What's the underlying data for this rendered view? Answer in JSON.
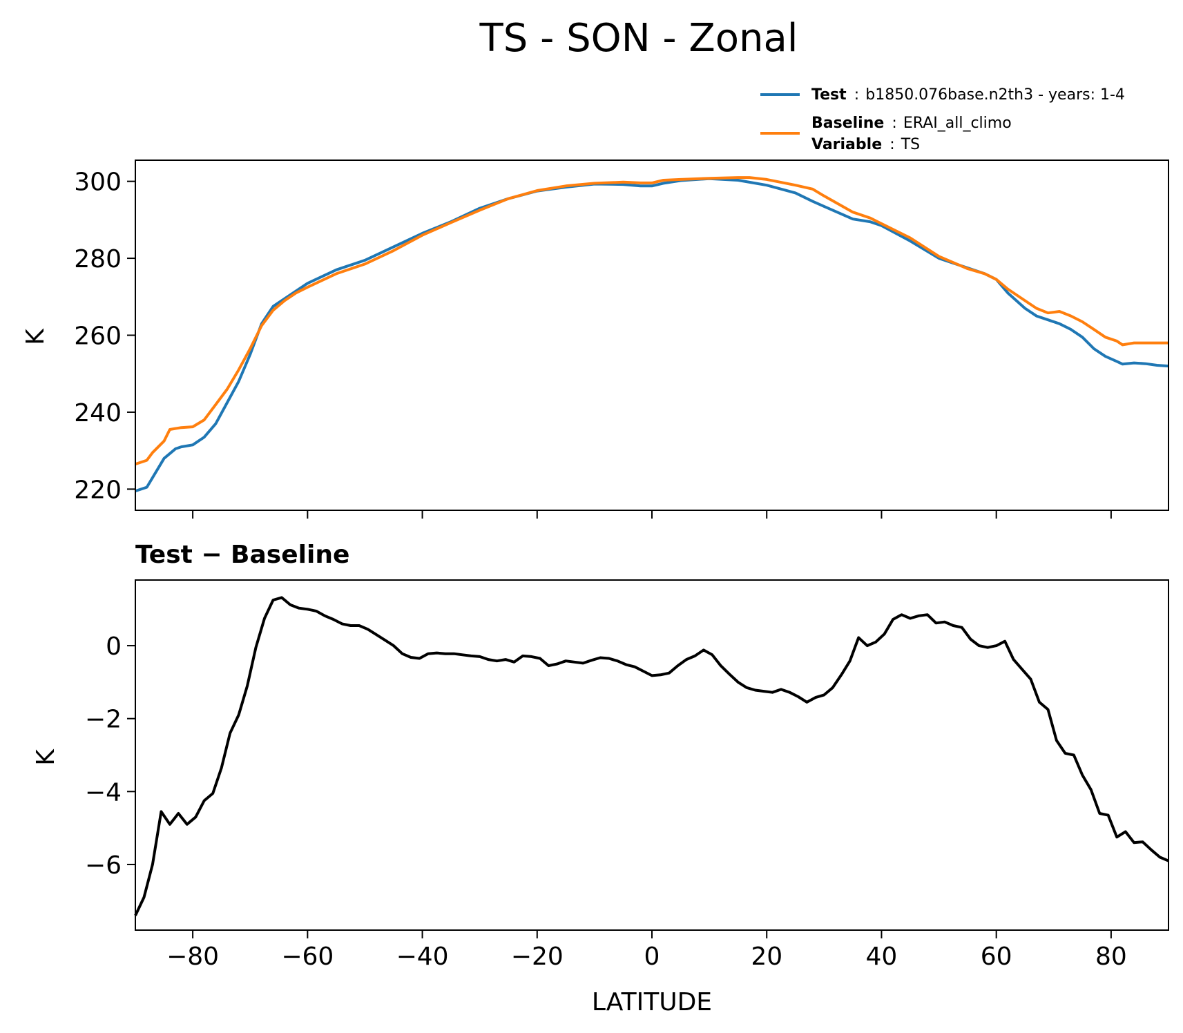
{
  "colors": {
    "test": "#1f77b4",
    "baseline": "#ff7f0e",
    "diff": "#000000"
  },
  "chart_data": [
    {
      "id": "top",
      "type": "line",
      "title": "TS - SON - Zonal",
      "xlabel": "",
      "ylabel": "K",
      "xlim": [
        -90,
        90
      ],
      "ylim": [
        214.5,
        305.5
      ],
      "xticks": [
        -80,
        -60,
        -40,
        -20,
        0,
        20,
        40,
        60,
        80
      ],
      "yticks": [
        220,
        240,
        260,
        280,
        300
      ],
      "ytick_labels": [
        "220",
        "240",
        "260",
        "280",
        "300"
      ],
      "legend": {
        "position": "top-right",
        "entries": [
          {
            "series": "test",
            "key": "Test",
            "sep": ":",
            "value": "b1850.076base.n2th3 - years: 1-4"
          },
          {
            "series": "baseline",
            "key": "Baseline",
            "sep": ":",
            "value": "ERAI_all_climo"
          },
          {
            "series": "baseline-extra",
            "key": "Variable",
            "sep": ":",
            "value": "TS"
          }
        ]
      },
      "series": [
        {
          "name": "Test",
          "color": "#1f77b4",
          "x": [
            -90,
            -88,
            -85,
            -83,
            -82,
            -80,
            -78,
            -76,
            -74,
            -72,
            -70,
            -68,
            -66,
            -64,
            -62,
            -60,
            -55,
            -50,
            -45,
            -40,
            -35,
            -30,
            -25,
            -20,
            -15,
            -10,
            -5,
            -2,
            0,
            2,
            5,
            10,
            15,
            20,
            25,
            28,
            30,
            35,
            38,
            40,
            45,
            50,
            55,
            58,
            60,
            62,
            65,
            67,
            69,
            71,
            73,
            75,
            77,
            79,
            81,
            82,
            84,
            86,
            88,
            90
          ],
          "values": [
            219.5,
            220.5,
            228,
            230.5,
            231,
            231.5,
            233.5,
            237,
            242.5,
            248,
            255,
            263,
            267.5,
            269.5,
            271.5,
            273.5,
            277,
            279.5,
            283,
            286.5,
            289.5,
            293,
            295.5,
            297.5,
            298.5,
            299.3,
            299.2,
            298.8,
            298.8,
            299.5,
            300.2,
            300.7,
            300.3,
            299,
            297,
            294.8,
            293.5,
            290.2,
            289.5,
            288.5,
            284.5,
            280,
            277.5,
            276,
            274.5,
            271,
            267,
            265,
            264,
            263,
            261.5,
            259.5,
            256.5,
            254.5,
            253.2,
            252.5,
            252.8,
            252.6,
            252.2,
            252
          ]
        },
        {
          "name": "Baseline",
          "color": "#ff7f0e",
          "x": [
            -90,
            -88,
            -87,
            -85,
            -84,
            -82,
            -80,
            -78,
            -76,
            -74,
            -72,
            -70,
            -68,
            -66,
            -64,
            -62,
            -60,
            -55,
            -50,
            -45,
            -40,
            -35,
            -30,
            -25,
            -20,
            -15,
            -10,
            -5,
            -2,
            0,
            2,
            5,
            10,
            15,
            17,
            20,
            25,
            28,
            30,
            35,
            38,
            40,
            45,
            50,
            55,
            58,
            60,
            62,
            65,
            67,
            69,
            71,
            73,
            75,
            77,
            79,
            81,
            82,
            84,
            86,
            88,
            90
          ],
          "values": [
            226.5,
            227.5,
            229.5,
            232.5,
            235.5,
            236,
            236.2,
            238,
            242,
            246,
            251,
            256.5,
            262.5,
            266.5,
            269,
            271,
            272.5,
            276,
            278.5,
            282,
            286,
            289.3,
            292.5,
            295.5,
            297.6,
            298.8,
            299.5,
            299.8,
            299.6,
            299.6,
            300.3,
            300.5,
            300.8,
            301,
            301,
            300.5,
            299,
            298,
            296.2,
            292,
            290.5,
            289,
            285.3,
            280.5,
            277.3,
            276,
            274.5,
            272,
            269,
            267,
            265.8,
            266.2,
            265,
            263.5,
            261.5,
            259.5,
            258.5,
            257.5,
            258,
            258,
            258,
            258
          ]
        }
      ]
    },
    {
      "id": "bottom",
      "type": "line",
      "title": "Test − Baseline",
      "xlabel": "LATITUDE",
      "ylabel": "K",
      "xlim": [
        -90,
        90
      ],
      "ylim": [
        -7.8,
        1.8
      ],
      "xticks": [
        -80,
        -60,
        -40,
        -20,
        0,
        20,
        40,
        60,
        80
      ],
      "xtick_labels": [
        "−80",
        "−60",
        "−40",
        "−20",
        "0",
        "20",
        "40",
        "60",
        "80"
      ],
      "yticks": [
        -6,
        -4,
        -2,
        0
      ],
      "ytick_labels": [
        "−6",
        "−4",
        "−2",
        "0"
      ],
      "series": [
        {
          "name": "Test − Baseline",
          "color": "#000000",
          "x": [
            -90,
            -88.5,
            -87,
            -85.5,
            -84,
            -82.5,
            -81,
            -79.5,
            -78,
            -76.5,
            -75,
            -73.5,
            -72,
            -70.5,
            -69,
            -67.5,
            -66,
            -64.5,
            -63,
            -61.5,
            -60,
            -58.5,
            -57,
            -55.5,
            -54,
            -52.5,
            -51,
            -49.5,
            -48,
            -46.5,
            -45,
            -43.5,
            -42,
            -40.5,
            -39,
            -37.5,
            -36,
            -34.5,
            -33,
            -31.5,
            -30,
            -28.5,
            -27,
            -25.5,
            -24,
            -22.5,
            -21,
            -19.5,
            -18,
            -16.5,
            -15,
            -13.5,
            -12,
            -10.5,
            -9,
            -7.5,
            -6,
            -4.5,
            -3,
            -1.5,
            0,
            1.5,
            3,
            4.5,
            6,
            7.5,
            9,
            10.5,
            12,
            13.5,
            15,
            16.5,
            18,
            19.5,
            21,
            22.5,
            24,
            25.5,
            27,
            28.5,
            30,
            31.5,
            33,
            34.5,
            36,
            37.5,
            39,
            40.5,
            42,
            43.5,
            45,
            46.5,
            48,
            49.5,
            51,
            52.5,
            54,
            55.5,
            57,
            58.5,
            60,
            61.5,
            63,
            64.5,
            66,
            67.5,
            69,
            70.5,
            72,
            73.5,
            75,
            76.5,
            78,
            79.5,
            81,
            82.5,
            84,
            85.5,
            87,
            88.5,
            90
          ],
          "values": [
            -7.4,
            -6.9,
            -6,
            -4.55,
            -4.9,
            -4.6,
            -4.9,
            -4.7,
            -4.25,
            -4.05,
            -3.35,
            -2.4,
            -1.9,
            -1.1,
            -0.05,
            0.75,
            1.25,
            1.32,
            1.12,
            1.03,
            1.0,
            0.95,
            0.82,
            0.72,
            0.6,
            0.55,
            0.55,
            0.45,
            0.3,
            0.15,
            0.0,
            -0.22,
            -0.32,
            -0.35,
            -0.22,
            -0.2,
            -0.22,
            -0.22,
            -0.25,
            -0.28,
            -0.3,
            -0.38,
            -0.42,
            -0.38,
            -0.45,
            -0.28,
            -0.3,
            -0.35,
            -0.55,
            -0.5,
            -0.42,
            -0.45,
            -0.48,
            -0.4,
            -0.33,
            -0.35,
            -0.42,
            -0.52,
            -0.58,
            -0.7,
            -0.82,
            -0.8,
            -0.75,
            -0.55,
            -0.38,
            -0.28,
            -0.12,
            -0.25,
            -0.55,
            -0.78,
            -1.0,
            -1.15,
            -1.22,
            -1.25,
            -1.28,
            -1.2,
            -1.28,
            -1.4,
            -1.55,
            -1.42,
            -1.35,
            -1.15,
            -0.8,
            -0.42,
            0.22,
            0.0,
            0.1,
            0.32,
            0.72,
            0.85,
            0.75,
            0.82,
            0.85,
            0.62,
            0.65,
            0.55,
            0.5,
            0.18,
            0.0,
            -0.05,
            0.0,
            0.12,
            -0.38,
            -0.65,
            -0.92,
            -1.55,
            -1.75,
            -2.6,
            -2.95,
            -3.0,
            -3.55,
            -3.95,
            -4.6,
            -4.65,
            -5.25,
            -5.1,
            -5.4,
            -5.38,
            -5.6,
            -5.8,
            -5.9
          ]
        }
      ]
    }
  ]
}
